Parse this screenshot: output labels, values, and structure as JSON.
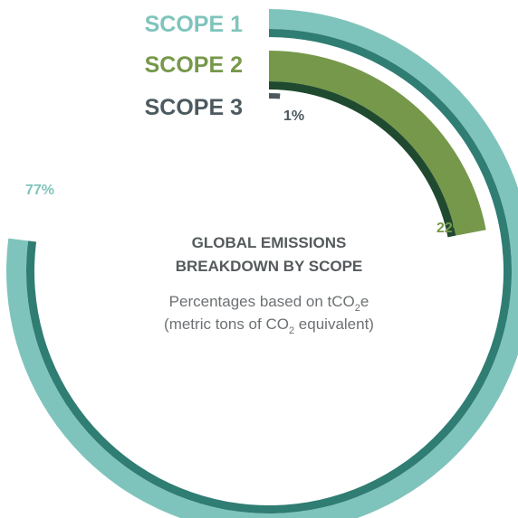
{
  "chart_data": {
    "type": "radial-bar",
    "title_lines": [
      "GLOBAL EMISSIONS",
      "BREAKDOWN BY SCOPE"
    ],
    "subtitle_parts": {
      "line1_before": "Percentages based on tCO",
      "line1_sub": "2",
      "line1_after": "e",
      "line2_before": "(metric tons of CO",
      "line2_sub": "2",
      "line2_after": " equivalent)"
    },
    "series": [
      {
        "name": "SCOPE 1",
        "value": 77,
        "label": "77%",
        "color": "#7fc4bc",
        "inner_color": "#2f7d73"
      },
      {
        "name": "SCOPE 2",
        "value": 22,
        "label": "22%",
        "color": "#76984a",
        "inner_color": "#1f4a2f"
      },
      {
        "name": "SCOPE 3",
        "value": 1,
        "label": "1%",
        "color": "#4c5a60",
        "inner_color": "#4c5a60"
      }
    ],
    "max_value": 100
  }
}
